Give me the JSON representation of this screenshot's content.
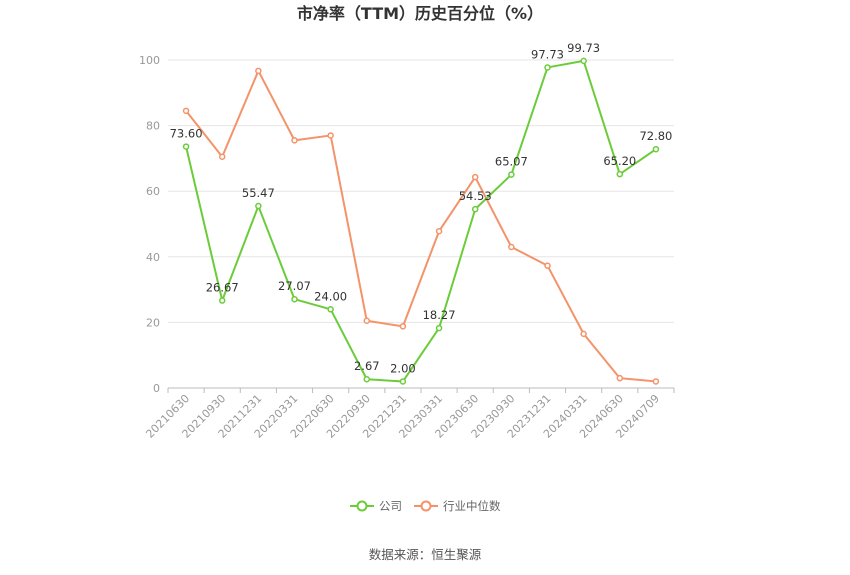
{
  "chart_data": {
    "type": "line",
    "title": "市净率（TTM）历史百分位（%）",
    "source": "数据来源：恒生聚源",
    "categories": [
      "20210630",
      "20210930",
      "20211231",
      "20220331",
      "20220630",
      "20220930",
      "20221231",
      "20230331",
      "20230630",
      "20230930",
      "20231231",
      "20240331",
      "20240630",
      "20240709"
    ],
    "ylim": [
      0,
      100
    ],
    "yticks": [
      0,
      20,
      40,
      60,
      80,
      100
    ],
    "series": [
      {
        "name": "公司",
        "color": "#6bcc3a",
        "values": [
          73.6,
          26.67,
          55.47,
          27.07,
          24.0,
          2.67,
          2.0,
          18.27,
          54.53,
          65.07,
          97.73,
          99.73,
          65.2,
          72.8
        ],
        "labels": [
          "73.60",
          "26.67",
          "55.47",
          "27.07",
          "24.00",
          "2.67",
          "2.00",
          "18.27",
          "54.53",
          "65.07",
          "97.73",
          "99.73",
          "65.20",
          "72.80"
        ]
      },
      {
        "name": "行业中位数",
        "color": "#f4936a",
        "values": [
          84.5,
          70.5,
          96.7,
          75.5,
          77.0,
          20.5,
          18.8,
          47.8,
          64.3,
          43.0,
          37.3,
          16.5,
          3.0,
          2.0
        ]
      }
    ],
    "legend_position": "bottom"
  }
}
